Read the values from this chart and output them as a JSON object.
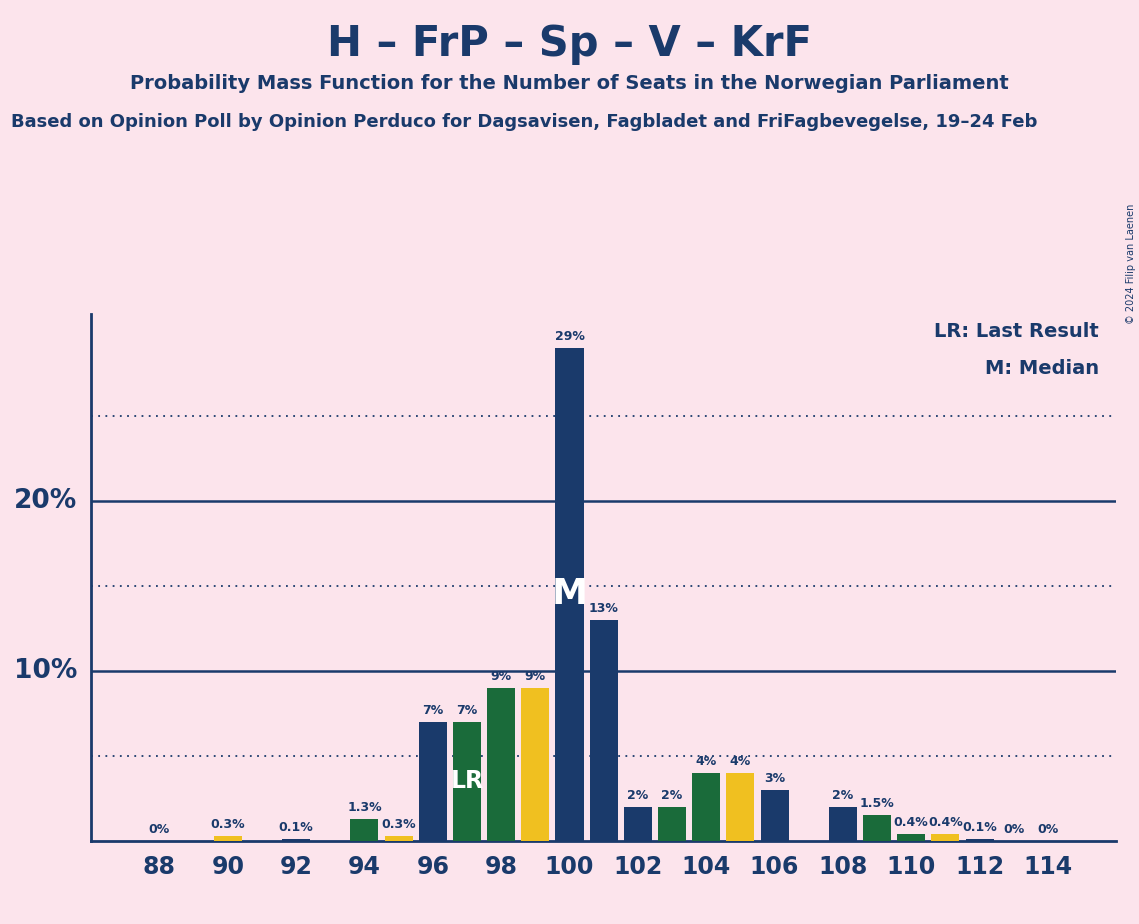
{
  "title": "H – FrP – Sp – V – KrF",
  "subtitle": "Probability Mass Function for the Number of Seats in the Norwegian Parliament",
  "source": "Based on Opinion Poll by Opinion Perduco for Dagsavisen, Fagbladet and FriFagbevegelse, 19–24 Feb",
  "copyright": "© 2024 Filip van Laenen",
  "background_color": "#fce4ec",
  "bar_color_blue": "#1a3a6b",
  "bar_color_green": "#1a6b3a",
  "bar_color_yellow": "#f0c020",
  "seat_data": {
    "88": [
      0.0,
      "#1a3a6b",
      "0%"
    ],
    "89": [
      0.0,
      "#1a3a6b",
      ""
    ],
    "90": [
      0.3,
      "#f0c020",
      "0.3%"
    ],
    "91": [
      0.0,
      "#1a3a6b",
      ""
    ],
    "92": [
      0.1,
      "#1a3a6b",
      "0.1%"
    ],
    "93": [
      0.0,
      "#1a3a6b",
      ""
    ],
    "94": [
      1.3,
      "#1a6b3a",
      "1.3%"
    ],
    "95": [
      0.3,
      "#f0c020",
      "0.3%"
    ],
    "96": [
      7.0,
      "#1a3a6b",
      "7%"
    ],
    "97": [
      7.0,
      "#1a6b3a",
      "7%"
    ],
    "98": [
      9.0,
      "#1a6b3a",
      "9%"
    ],
    "99": [
      9.0,
      "#f0c020",
      "9%"
    ],
    "100": [
      29.0,
      "#1a3a6b",
      "29%"
    ],
    "101": [
      13.0,
      "#1a3a6b",
      "13%"
    ],
    "102": [
      2.0,
      "#1a3a6b",
      "2%"
    ],
    "103": [
      2.0,
      "#1a6b3a",
      "2%"
    ],
    "104": [
      4.0,
      "#1a6b3a",
      "4%"
    ],
    "105": [
      4.0,
      "#f0c020",
      "4%"
    ],
    "106": [
      3.0,
      "#1a3a6b",
      "3%"
    ],
    "107": [
      0.0,
      "#1a3a6b",
      ""
    ],
    "108": [
      2.0,
      "#1a3a6b",
      "2%"
    ],
    "109": [
      1.5,
      "#1a6b3a",
      "1.5%"
    ],
    "110": [
      0.4,
      "#1a6b3a",
      "0.4%"
    ],
    "111": [
      0.4,
      "#f0c020",
      "0.4%"
    ],
    "112": [
      0.1,
      "#1a3a6b",
      "0.1%"
    ],
    "113": [
      0.0,
      "#1a3a6b",
      "0%"
    ],
    "114": [
      0.0,
      "#1a3a6b",
      "0%"
    ]
  },
  "lr_seat": 97,
  "median_seat": 100,
  "xlim": [
    86.0,
    116.0
  ],
  "ylim": [
    0,
    31
  ],
  "title_color": "#1a3a6b",
  "dotted_lines": [
    5,
    15,
    25
  ],
  "solid_lines": [
    10,
    20
  ],
  "bar_width": 0.82,
  "title_fontsize": 30,
  "subtitle_fontsize": 14,
  "source_fontsize": 13,
  "label_fontsize": 9,
  "tick_fontsize": 17,
  "ylabel_fontsize": 19,
  "legend_fontsize": 14,
  "m_fontsize": 26,
  "lr_fontsize": 17,
  "copyright_fontsize": 7
}
